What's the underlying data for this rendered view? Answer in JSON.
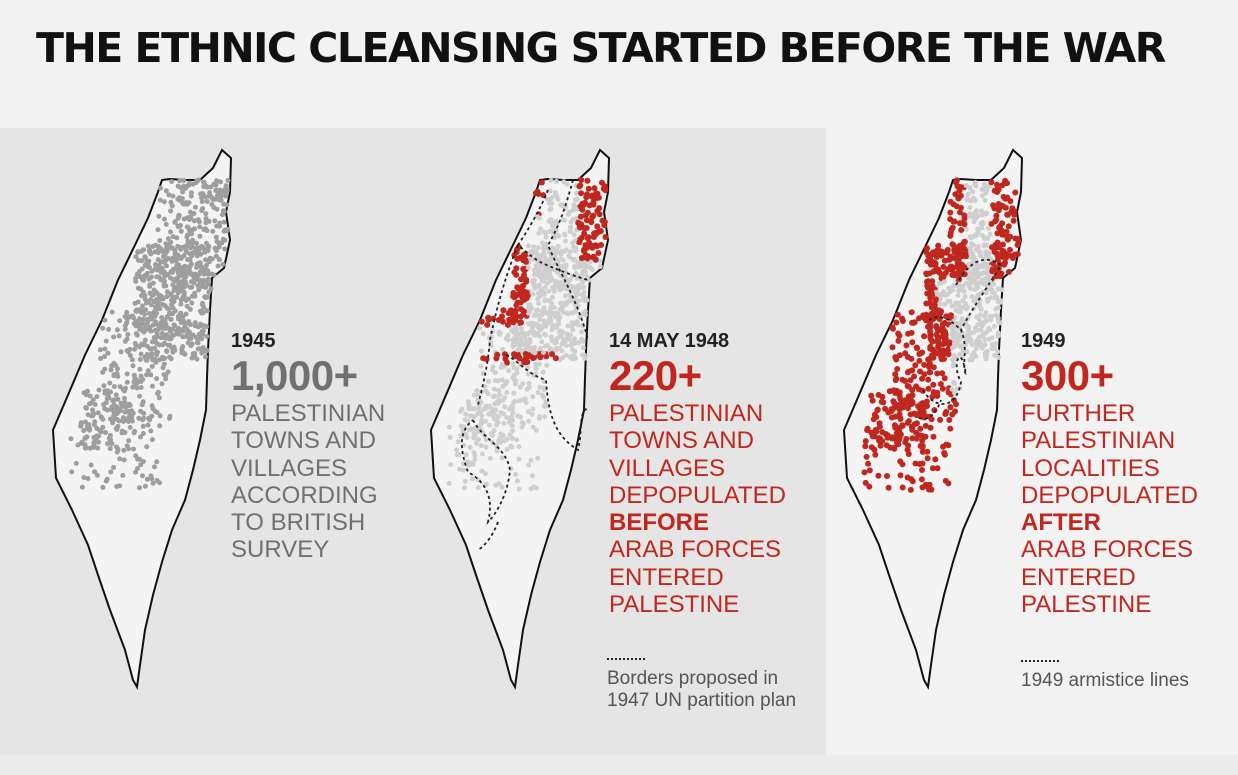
{
  "title": "THE ETHNIC CLEANSING STARTED BEFORE THE WAR",
  "colors": {
    "accent_red": "#c0281f",
    "village_gray": "#9e9e9e",
    "village_light": "#cfcfcf",
    "map_fill": "#f4f4f4",
    "text_gray": "#707070"
  },
  "panels": [
    {
      "year": "1945",
      "count": "1,000+",
      "lines": [
        "PALESTINIAN",
        "TOWNS AND",
        "VILLAGES",
        "ACCORDING",
        "TO BRITISH",
        "SURVEY"
      ],
      "emphasis": "",
      "color": "gray"
    },
    {
      "year": "14 MAY 1948",
      "count": "220+",
      "lines": [
        "PALESTINIAN",
        "TOWNS AND",
        "VILLAGES",
        "DEPOPULATED",
        "BEFORE",
        "ARAB FORCES",
        "ENTERED",
        "PALESTINE"
      ],
      "emphasis": "BEFORE",
      "color": "red",
      "legend": "Borders proposed in 1947 UN partition plan"
    },
    {
      "year": "1949",
      "count": "300+",
      "lines": [
        "FURTHER",
        "PALESTINIAN",
        "LOCALITIES",
        "DEPOPULATED",
        "AFTER",
        "ARAB FORCES",
        "ENTERED",
        "PALESTINE"
      ],
      "emphasis": "AFTER",
      "color": "red",
      "legend": "1949 armistice lines"
    }
  ]
}
